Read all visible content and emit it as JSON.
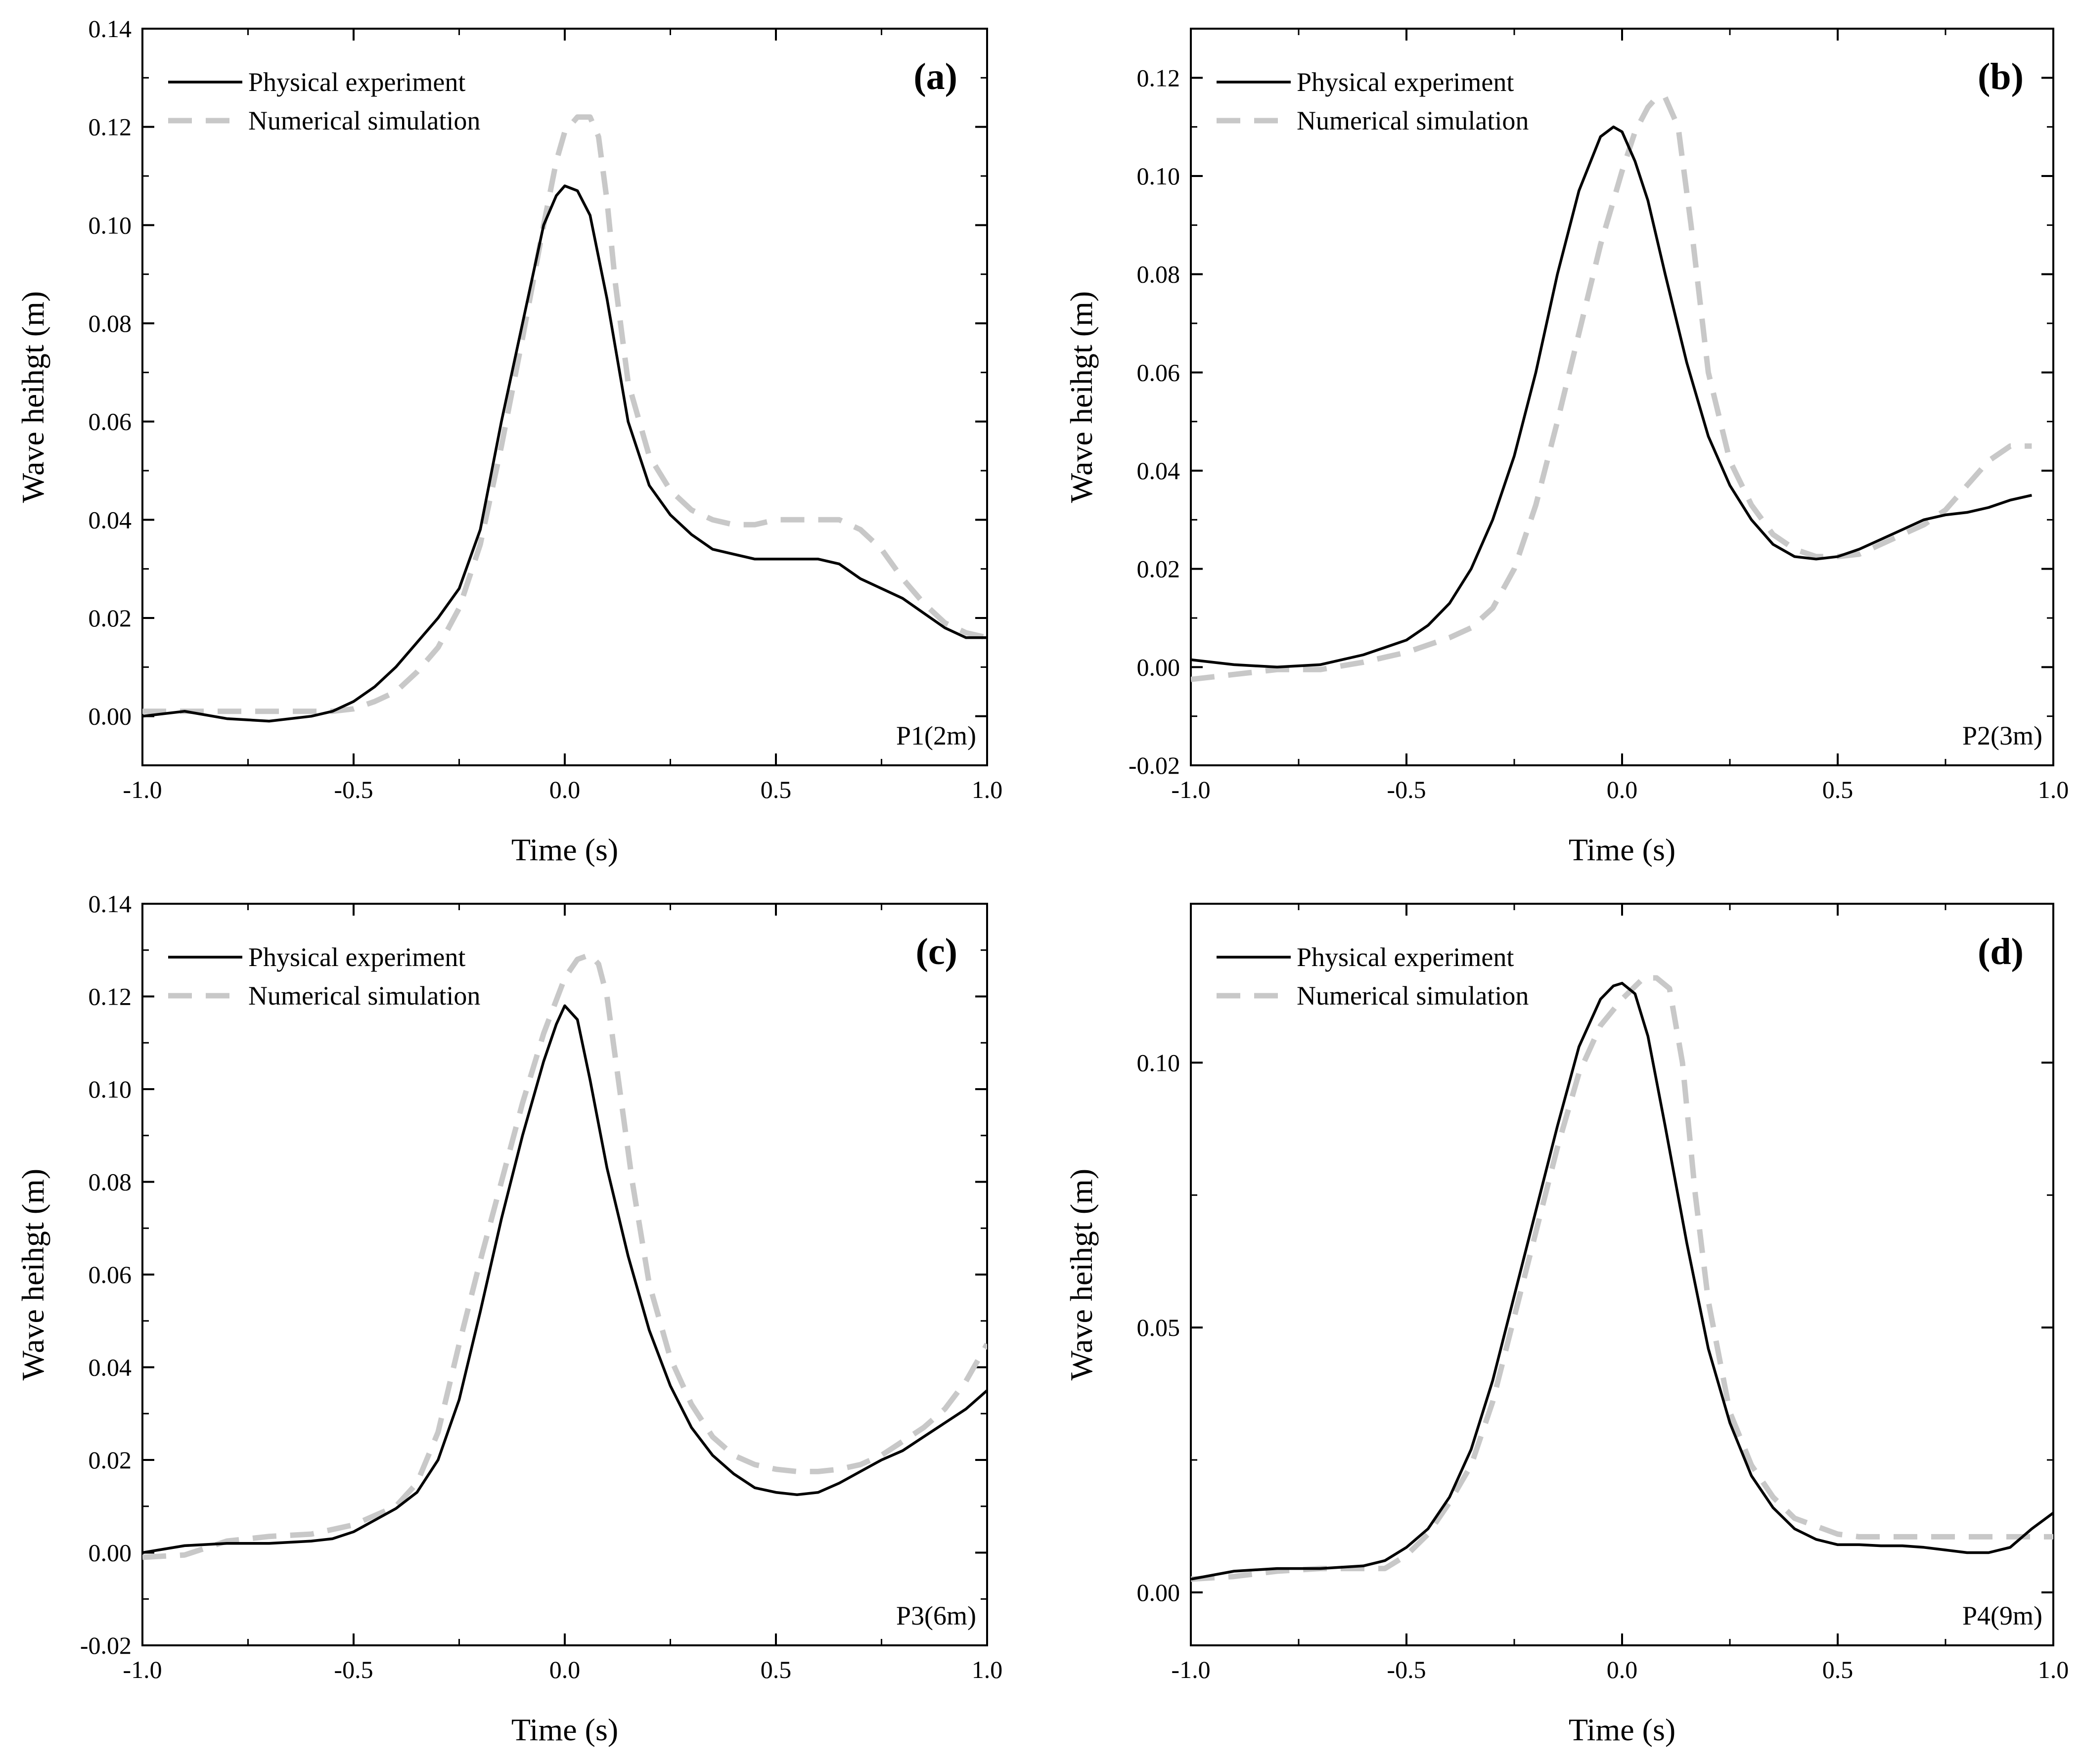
{
  "colors": {
    "physical": "#000000",
    "numerical": "#c8c8c8",
    "axis": "#000000"
  },
  "chart_data": [
    {
      "type": "line",
      "panel": "(a)",
      "annotation": "P1(2m)",
      "xlabel": "Time (s)",
      "ylabel": "Wave heihgt (m)",
      "xlim": [
        -1.0,
        1.0
      ],
      "ylim": [
        -0.01,
        0.14
      ],
      "xticks": [
        "-1.0",
        "-0.5",
        "0.0",
        "0.5",
        "1.0"
      ],
      "xtick_values": [
        -1.0,
        -0.5,
        0.0,
        0.5,
        1.0
      ],
      "yticks": [
        "0.00",
        "0.02",
        "0.04",
        "0.06",
        "0.08",
        "0.10",
        "0.12",
        "0.14"
      ],
      "ytick_values": [
        0.0,
        0.02,
        0.04,
        0.06,
        0.08,
        0.1,
        0.12,
        0.14
      ],
      "legend": "top-left",
      "series": [
        {
          "name": "Physical experiment",
          "x": [
            -1.0,
            -0.9,
            -0.8,
            -0.7,
            -0.6,
            -0.55,
            -0.5,
            -0.45,
            -0.4,
            -0.35,
            -0.3,
            -0.25,
            -0.2,
            -0.15,
            -0.1,
            -0.05,
            -0.02,
            0.0,
            0.03,
            0.06,
            0.1,
            0.15,
            0.2,
            0.25,
            0.3,
            0.35,
            0.4,
            0.45,
            0.5,
            0.55,
            0.6,
            0.65,
            0.7,
            0.75,
            0.8,
            0.85,
            0.9,
            0.95,
            1.0
          ],
          "values": [
            0.0,
            0.001,
            -0.0005,
            -0.001,
            0.0,
            0.001,
            0.003,
            0.006,
            0.01,
            0.015,
            0.02,
            0.026,
            0.038,
            0.06,
            0.08,
            0.1,
            0.106,
            0.108,
            0.107,
            0.102,
            0.085,
            0.06,
            0.047,
            0.041,
            0.037,
            0.034,
            0.033,
            0.032,
            0.032,
            0.032,
            0.032,
            0.031,
            0.028,
            0.026,
            0.024,
            0.021,
            0.018,
            0.016,
            0.016
          ]
        },
        {
          "name": "Numerical simulation",
          "x": [
            -1.0,
            -0.9,
            -0.8,
            -0.7,
            -0.6,
            -0.55,
            -0.5,
            -0.45,
            -0.4,
            -0.35,
            -0.3,
            -0.25,
            -0.2,
            -0.15,
            -0.1,
            -0.05,
            -0.02,
            0.0,
            0.03,
            0.06,
            0.08,
            0.1,
            0.12,
            0.15,
            0.2,
            0.25,
            0.3,
            0.35,
            0.4,
            0.45,
            0.5,
            0.55,
            0.6,
            0.65,
            0.7,
            0.75,
            0.8,
            0.85,
            0.9,
            0.95,
            1.0
          ],
          "values": [
            0.001,
            0.001,
            0.001,
            0.001,
            0.001,
            0.001,
            0.0015,
            0.003,
            0.005,
            0.009,
            0.014,
            0.022,
            0.035,
            0.055,
            0.077,
            0.1,
            0.113,
            0.119,
            0.122,
            0.122,
            0.118,
            0.105,
            0.088,
            0.068,
            0.053,
            0.046,
            0.042,
            0.04,
            0.039,
            0.039,
            0.04,
            0.04,
            0.04,
            0.04,
            0.038,
            0.034,
            0.028,
            0.023,
            0.019,
            0.017,
            0.016
          ]
        }
      ]
    },
    {
      "type": "line",
      "panel": "(b)",
      "annotation": "P2(3m)",
      "xlabel": "Time (s)",
      "ylabel": "Wave heihgt (m)",
      "xlim": [
        -1.0,
        1.0
      ],
      "ylim": [
        -0.02,
        0.13
      ],
      "xticks": [
        "-1.0",
        "-0.5",
        "0.0",
        "0.5",
        "1.0"
      ],
      "xtick_values": [
        -1.0,
        -0.5,
        0.0,
        0.5,
        1.0
      ],
      "yticks": [
        "-0.02",
        "0.00",
        "0.02",
        "0.04",
        "0.06",
        "0.08",
        "0.10",
        "0.12"
      ],
      "ytick_values": [
        -0.02,
        0.0,
        0.02,
        0.04,
        0.06,
        0.08,
        0.1,
        0.12
      ],
      "legend": "top-left",
      "series": [
        {
          "name": "Physical experiment",
          "x": [
            -1.0,
            -0.9,
            -0.8,
            -0.7,
            -0.6,
            -0.5,
            -0.45,
            -0.4,
            -0.35,
            -0.3,
            -0.25,
            -0.2,
            -0.15,
            -0.1,
            -0.05,
            -0.02,
            0.0,
            0.03,
            0.06,
            0.1,
            0.15,
            0.2,
            0.25,
            0.3,
            0.35,
            0.4,
            0.45,
            0.5,
            0.55,
            0.6,
            0.65,
            0.7,
            0.75,
            0.8,
            0.85,
            0.9,
            0.95
          ],
          "values": [
            0.0015,
            0.0005,
            0.0,
            0.0005,
            0.0025,
            0.0055,
            0.0085,
            0.013,
            0.02,
            0.03,
            0.043,
            0.06,
            0.08,
            0.097,
            0.108,
            0.11,
            0.109,
            0.103,
            0.095,
            0.08,
            0.062,
            0.047,
            0.037,
            0.03,
            0.025,
            0.0225,
            0.022,
            0.0225,
            0.024,
            0.026,
            0.028,
            0.03,
            0.031,
            0.0315,
            0.0325,
            0.034,
            0.035
          ]
        },
        {
          "name": "Numerical simulation",
          "x": [
            -1.0,
            -0.9,
            -0.8,
            -0.7,
            -0.6,
            -0.5,
            -0.45,
            -0.4,
            -0.35,
            -0.3,
            -0.25,
            -0.2,
            -0.15,
            -0.1,
            -0.05,
            0.0,
            0.03,
            0.06,
            0.08,
            0.1,
            0.13,
            0.16,
            0.2,
            0.25,
            0.3,
            0.35,
            0.4,
            0.45,
            0.5,
            0.55,
            0.6,
            0.65,
            0.7,
            0.75,
            0.8,
            0.85,
            0.9,
            0.95
          ],
          "values": [
            -0.0025,
            -0.0015,
            -0.0005,
            -0.0005,
            0.001,
            0.003,
            0.0045,
            0.006,
            0.008,
            0.012,
            0.02,
            0.033,
            0.05,
            0.068,
            0.086,
            0.101,
            0.109,
            0.114,
            0.116,
            0.116,
            0.11,
            0.09,
            0.06,
            0.042,
            0.033,
            0.027,
            0.024,
            0.0225,
            0.0225,
            0.023,
            0.025,
            0.027,
            0.029,
            0.032,
            0.037,
            0.042,
            0.045,
            0.045
          ]
        }
      ]
    },
    {
      "type": "line",
      "panel": "(c)",
      "annotation": "P3(6m)",
      "xlabel": "Time (s)",
      "ylabel": "Wave heihgt (m)",
      "xlim": [
        -1.0,
        1.0
      ],
      "ylim": [
        -0.02,
        0.14
      ],
      "xticks": [
        "-1.0",
        "-0.5",
        "0.0",
        "0.5",
        "1.0"
      ],
      "xtick_values": [
        -1.0,
        -0.5,
        0.0,
        0.5,
        1.0
      ],
      "yticks": [
        "-0.02",
        "0.00",
        "0.02",
        "0.04",
        "0.06",
        "0.08",
        "0.10",
        "0.12",
        "0.14"
      ],
      "ytick_values": [
        -0.02,
        0.0,
        0.02,
        0.04,
        0.06,
        0.08,
        0.1,
        0.12,
        0.14
      ],
      "legend": "top-left",
      "series": [
        {
          "name": "Physical experiment",
          "x": [
            -1.0,
            -0.9,
            -0.8,
            -0.7,
            -0.6,
            -0.55,
            -0.5,
            -0.45,
            -0.4,
            -0.35,
            -0.3,
            -0.25,
            -0.2,
            -0.15,
            -0.1,
            -0.05,
            -0.02,
            0.0,
            0.03,
            0.06,
            0.1,
            0.15,
            0.2,
            0.25,
            0.3,
            0.35,
            0.4,
            0.45,
            0.5,
            0.55,
            0.6,
            0.65,
            0.7,
            0.75,
            0.8,
            0.85,
            0.9,
            0.95,
            1.0
          ],
          "values": [
            0.0,
            0.0015,
            0.002,
            0.002,
            0.0025,
            0.003,
            0.0045,
            0.007,
            0.0095,
            0.013,
            0.02,
            0.033,
            0.052,
            0.072,
            0.09,
            0.106,
            0.114,
            0.118,
            0.115,
            0.102,
            0.083,
            0.064,
            0.048,
            0.036,
            0.027,
            0.021,
            0.017,
            0.014,
            0.013,
            0.0125,
            0.013,
            0.015,
            0.0175,
            0.02,
            0.022,
            0.025,
            0.028,
            0.031,
            0.035
          ]
        },
        {
          "name": "Numerical simulation",
          "x": [
            -1.0,
            -0.9,
            -0.8,
            -0.7,
            -0.6,
            -0.5,
            -0.45,
            -0.4,
            -0.35,
            -0.3,
            -0.25,
            -0.2,
            -0.15,
            -0.1,
            -0.05,
            0.0,
            0.03,
            0.06,
            0.08,
            0.1,
            0.13,
            0.16,
            0.2,
            0.25,
            0.3,
            0.35,
            0.4,
            0.45,
            0.5,
            0.55,
            0.6,
            0.65,
            0.7,
            0.75,
            0.8,
            0.85,
            0.9,
            0.95,
            1.0
          ],
          "values": [
            -0.001,
            -0.0005,
            0.0025,
            0.0035,
            0.004,
            0.006,
            0.008,
            0.01,
            0.015,
            0.026,
            0.045,
            0.063,
            0.08,
            0.097,
            0.112,
            0.124,
            0.128,
            0.129,
            0.127,
            0.12,
            0.1,
            0.08,
            0.058,
            0.042,
            0.032,
            0.025,
            0.021,
            0.019,
            0.018,
            0.0175,
            0.0175,
            0.018,
            0.019,
            0.021,
            0.024,
            0.027,
            0.031,
            0.037,
            0.045
          ]
        }
      ]
    },
    {
      "type": "line",
      "panel": "(d)",
      "annotation": "P4(9m)",
      "xlabel": "Time (s)",
      "ylabel": "Wave heihgt (m)",
      "xlim": [
        -1.0,
        1.0
      ],
      "ylim": [
        -0.01,
        0.13
      ],
      "xticks": [
        "-1.0",
        "-0.5",
        "0.0",
        "0.5",
        "1.0"
      ],
      "xtick_values": [
        -1.0,
        -0.5,
        0.0,
        0.5,
        1.0
      ],
      "yticks": [
        "0.00",
        "0.05",
        "0.10"
      ],
      "ytick_values": [
        0.0,
        0.05,
        0.1
      ],
      "legend": "top-left",
      "series": [
        {
          "name": "Physical experiment",
          "x": [
            -1.0,
            -0.9,
            -0.8,
            -0.7,
            -0.6,
            -0.55,
            -0.5,
            -0.45,
            -0.4,
            -0.35,
            -0.3,
            -0.25,
            -0.2,
            -0.15,
            -0.1,
            -0.05,
            -0.02,
            0.0,
            0.03,
            0.06,
            0.1,
            0.15,
            0.2,
            0.25,
            0.3,
            0.35,
            0.4,
            0.45,
            0.5,
            0.55,
            0.6,
            0.65,
            0.7,
            0.75,
            0.8,
            0.85,
            0.9,
            0.95,
            1.0
          ],
          "values": [
            0.0025,
            0.004,
            0.0045,
            0.0045,
            0.005,
            0.006,
            0.0085,
            0.012,
            0.018,
            0.027,
            0.04,
            0.056,
            0.072,
            0.088,
            0.103,
            0.112,
            0.1145,
            0.115,
            0.113,
            0.105,
            0.088,
            0.066,
            0.046,
            0.032,
            0.022,
            0.016,
            0.012,
            0.01,
            0.009,
            0.009,
            0.0088,
            0.0088,
            0.0085,
            0.008,
            0.0075,
            0.0075,
            0.0085,
            0.012,
            0.015
          ]
        },
        {
          "name": "Numerical simulation",
          "x": [
            -1.0,
            -0.9,
            -0.8,
            -0.7,
            -0.6,
            -0.55,
            -0.5,
            -0.45,
            -0.4,
            -0.35,
            -0.3,
            -0.25,
            -0.2,
            -0.15,
            -0.1,
            -0.05,
            0.0,
            0.05,
            0.08,
            0.11,
            0.14,
            0.17,
            0.2,
            0.25,
            0.3,
            0.35,
            0.4,
            0.45,
            0.5,
            0.55,
            0.6,
            0.65,
            0.7,
            0.75,
            0.8,
            0.85,
            0.9,
            0.95,
            1.0
          ],
          "values": [
            0.0025,
            0.003,
            0.004,
            0.0045,
            0.0045,
            0.0045,
            0.007,
            0.011,
            0.017,
            0.024,
            0.036,
            0.052,
            0.068,
            0.084,
            0.098,
            0.107,
            0.112,
            0.116,
            0.116,
            0.114,
            0.1,
            0.075,
            0.055,
            0.034,
            0.024,
            0.018,
            0.014,
            0.0125,
            0.011,
            0.0105,
            0.0105,
            0.0105,
            0.0105,
            0.0105,
            0.0105,
            0.0105,
            0.0105,
            0.0105,
            0.0105
          ]
        }
      ]
    }
  ]
}
